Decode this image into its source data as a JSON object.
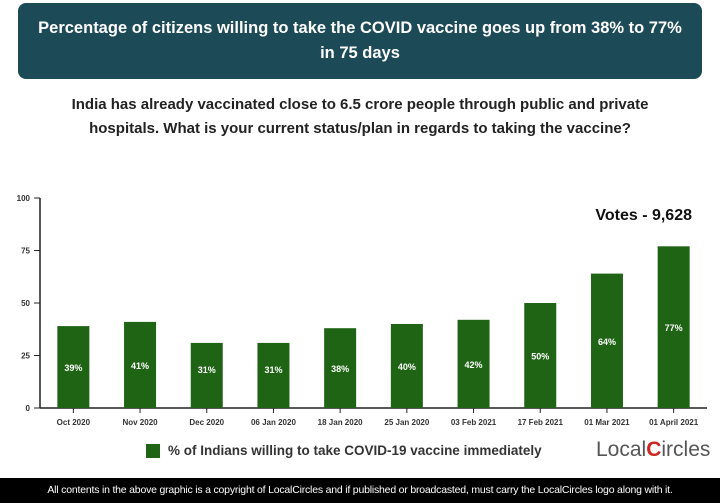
{
  "header": {
    "title": "Percentage of citizens willing to take the COVID vaccine goes up from 38% to 77% in 75 days"
  },
  "question": "India has already vaccinated close to 6.5 crore people through public and private hospitals. What is your current status/plan in regards to taking the vaccine?",
  "votes": "Votes - 9,628",
  "logo": {
    "text": "LocalCircles",
    "accent": "#d0251f"
  },
  "footer": "All contents in the above graphic is a copyright of LocalCircles and if published or broadcasted, must carry the LocalCircles logo along with it.",
  "chart_data": {
    "type": "bar",
    "categories": [
      "Oct 2020",
      "Nov 2020",
      "Dec 2020",
      "06 Jan 2020",
      "18 Jan 2020",
      "25 Jan 2020",
      "03 Feb 2021",
      "17 Feb 2021",
      "01 Mar 2021",
      "01 April 2021"
    ],
    "series": [
      {
        "name": "% of Indians willing to take COVID-19 vaccine immediately",
        "values": [
          39,
          41,
          31,
          31,
          38,
          40,
          42,
          50,
          64,
          77
        ],
        "labels": [
          "39%",
          "41%",
          "31%",
          "31%",
          "38%",
          "40%",
          "42%",
          "50%",
          "64%",
          "77%"
        ],
        "color": "#1e6414"
      }
    ],
    "ylim": [
      0,
      100
    ],
    "yticks": [
      0,
      25,
      50,
      75,
      100
    ],
    "grid": false,
    "legend": "bottom"
  }
}
